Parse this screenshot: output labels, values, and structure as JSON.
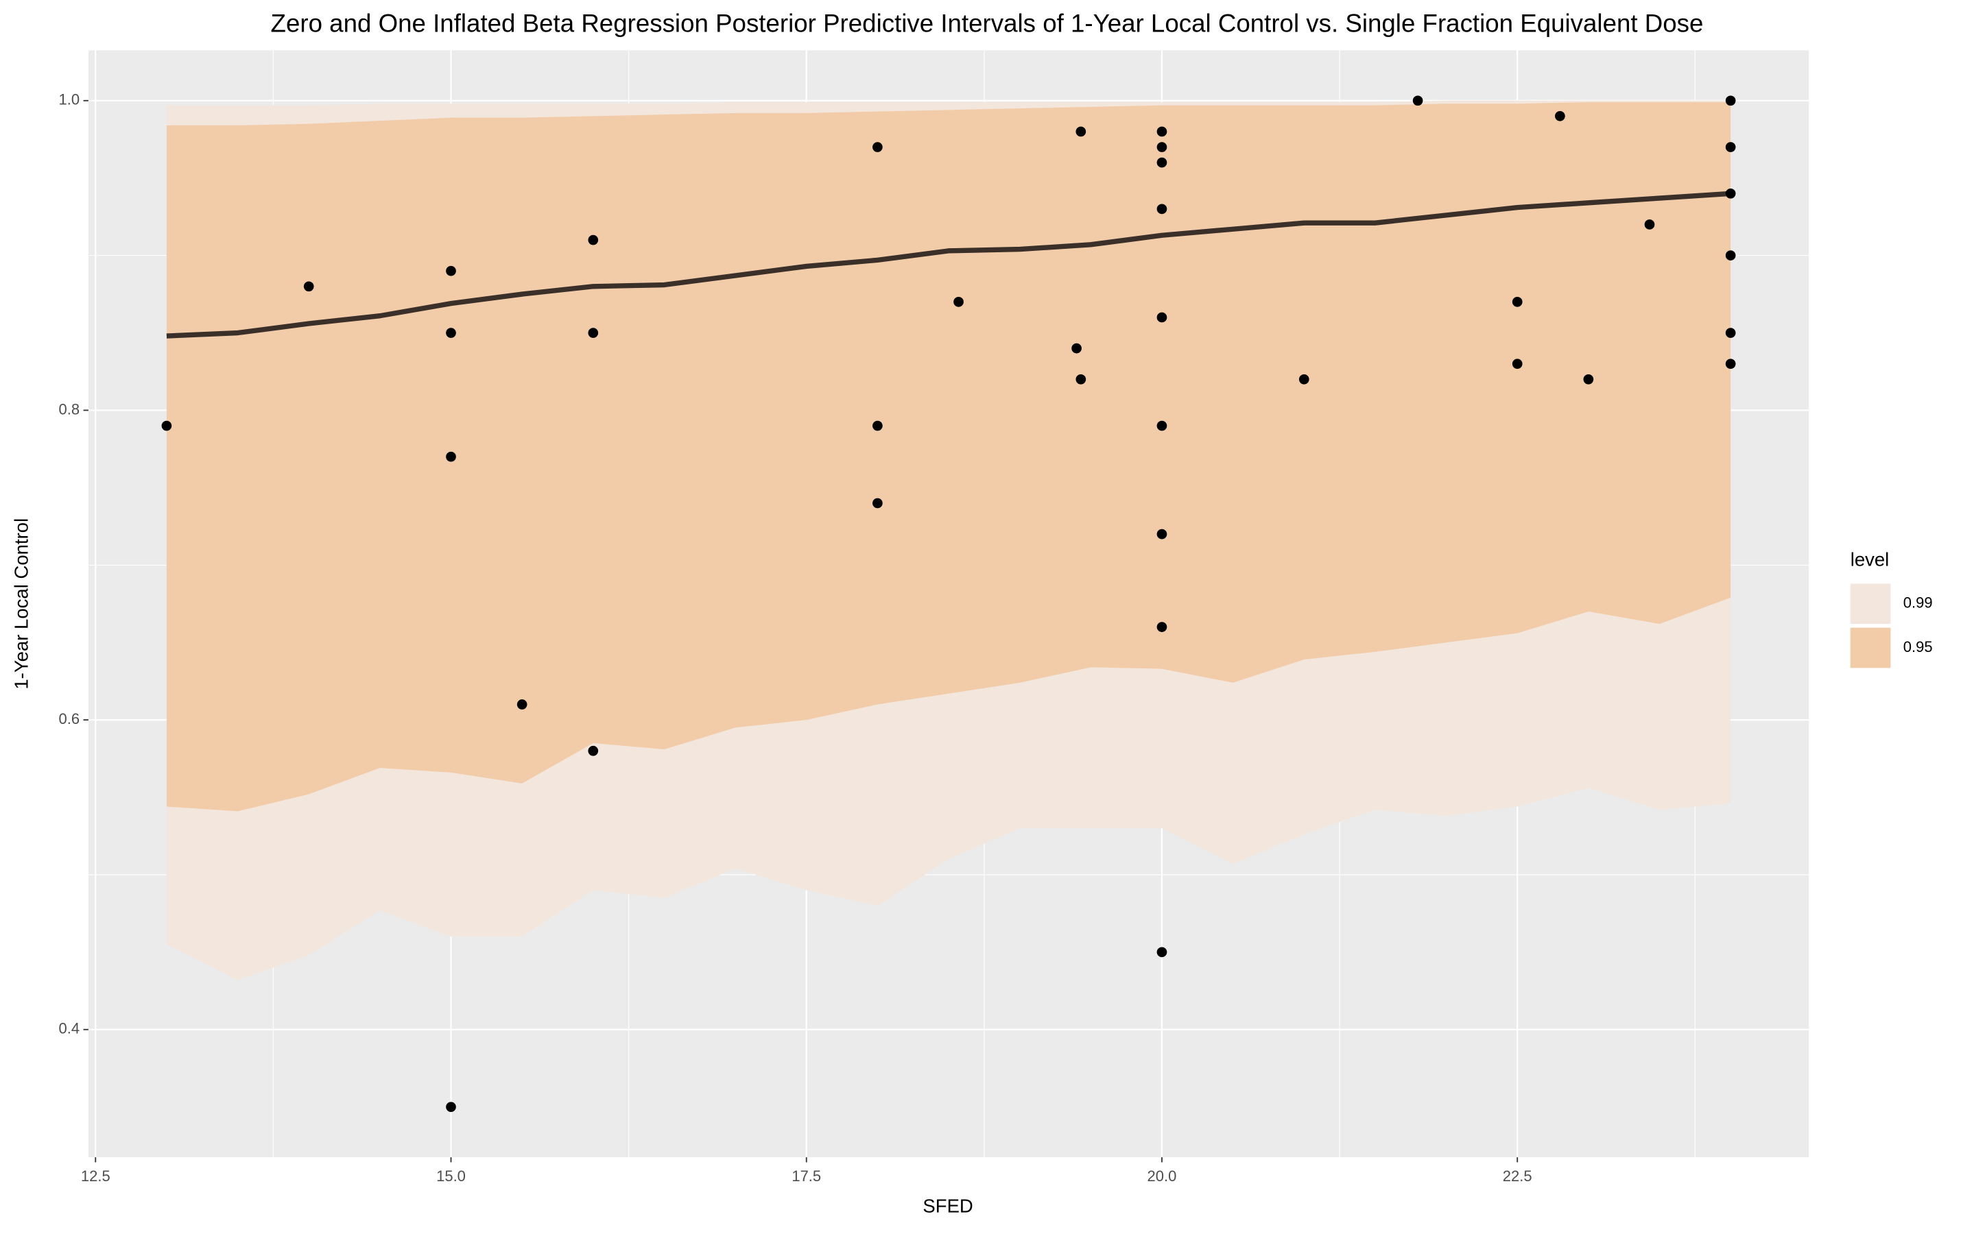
{
  "chart_data": {
    "type": "ribbon",
    "title": "Zero and One Inflated Beta Regression Posterior Predictive Intervals of 1-Year Local Control vs. Single Fraction Equivalent Dose",
    "xlabel": "SFED",
    "ylabel": "1-Year Local Control",
    "legend_title": "level",
    "xlim": [
      12.45,
      24.55
    ],
    "ylim": [
      0.3175,
      1.0325
    ],
    "xticks": [
      12.5,
      {
        "value": 15,
        "label": "15.0"
      },
      17.5,
      {
        "value": 20,
        "label": "20.0"
      },
      22.5
    ],
    "yticks": [
      0.4,
      0.6,
      0.8,
      {
        "value": 1,
        "label": "1.0"
      }
    ],
    "grid": true,
    "x": [
      13,
      13.5,
      14,
      14.5,
      15,
      15.5,
      16,
      16.5,
      17,
      17.5,
      18,
      18.5,
      19,
      19.5,
      20,
      20.5,
      21,
      21.5,
      22,
      22.5,
      23,
      23.5,
      24
    ],
    "series": [
      {
        "name": "0.99",
        "color": "#f3e6dc",
        "lower": [
          0.455,
          0.432,
          0.448,
          0.477,
          0.46,
          0.46,
          0.49,
          0.485,
          0.504,
          0.49,
          0.48,
          0.51,
          0.53,
          0.53,
          0.53,
          0.507,
          0.526,
          0.542,
          0.538,
          0.544,
          0.556,
          0.542,
          0.546
        ],
        "upper": [
          0.997,
          0.997,
          0.997,
          0.998,
          0.998,
          0.998,
          0.998,
          0.998,
          0.999,
          0.999,
          0.999,
          0.999,
          0.999,
          0.999,
          0.999,
          0.999,
          0.999,
          0.999,
          1,
          1,
          1,
          1,
          1
        ]
      },
      {
        "name": "0.95",
        "color": "#f2cca9",
        "lower": [
          0.544,
          0.541,
          0.552,
          0.569,
          0.566,
          0.559,
          0.585,
          0.581,
          0.595,
          0.6,
          0.61,
          0.617,
          0.624,
          0.634,
          0.633,
          0.624,
          0.639,
          0.644,
          0.65,
          0.656,
          0.67,
          0.662,
          0.679
        ],
        "upper": [
          0.984,
          0.984,
          0.985,
          0.987,
          0.989,
          0.989,
          0.99,
          0.991,
          0.992,
          0.992,
          0.993,
          0.994,
          0.995,
          0.996,
          0.997,
          0.997,
          0.997,
          0.997,
          0.998,
          0.998,
          0.999,
          0.999,
          0.999
        ]
      }
    ],
    "median": {
      "color": "#3b3029",
      "values": [
        0.848,
        0.85,
        0.856,
        0.861,
        0.869,
        0.875,
        0.88,
        0.881,
        0.887,
        0.893,
        0.897,
        0.903,
        0.904,
        0.907,
        0.913,
        0.917,
        0.921,
        0.921,
        0.926,
        0.931,
        0.934,
        0.937,
        0.94
      ]
    },
    "points": {
      "color": "#000000",
      "x": [
        13,
        14,
        15,
        15,
        15,
        15,
        15.5,
        16,
        16,
        16,
        18,
        18,
        18,
        18.57,
        19.4,
        19.43,
        19.43,
        20,
        20,
        20,
        20,
        20,
        20,
        20,
        20,
        20,
        21,
        21.8,
        22.5,
        22.5,
        22.8,
        23,
        23.43,
        24,
        24,
        24,
        24,
        24,
        24
      ],
      "y": [
        0.79,
        0.88,
        0.89,
        0.85,
        0.77,
        0.35,
        0.61,
        0.91,
        0.85,
        0.58,
        0.97,
        0.79,
        0.74,
        0.87,
        0.84,
        0.98,
        0.82,
        0.98,
        0.97,
        0.96,
        0.93,
        0.86,
        0.79,
        0.72,
        0.66,
        0.45,
        0.82,
        1,
        0.87,
        0.83,
        0.99,
        0.82,
        0.92,
        1,
        0.97,
        0.94,
        0.9,
        0.85,
        0.83
      ]
    }
  }
}
